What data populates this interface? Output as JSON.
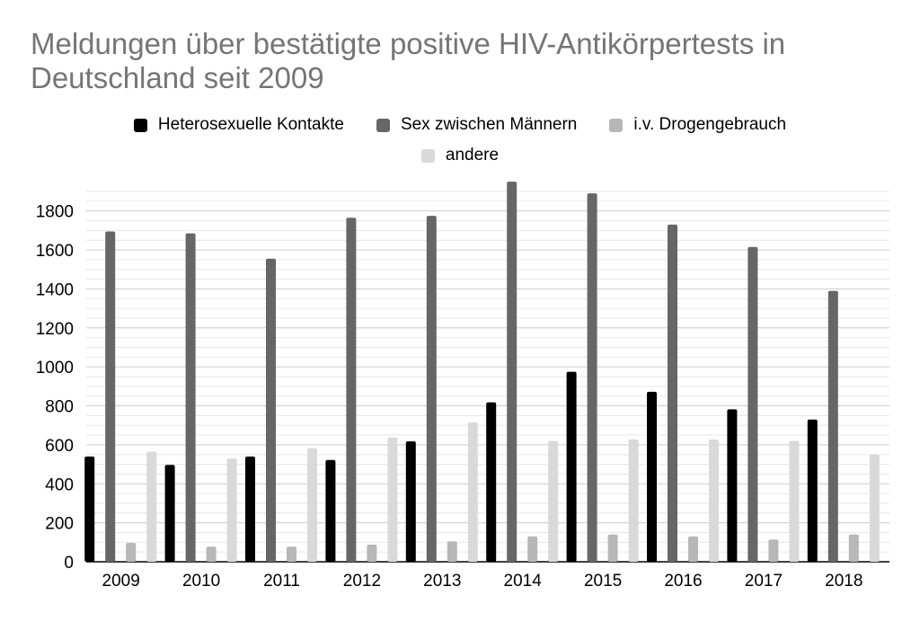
{
  "chart_data": {
    "type": "bar",
    "title": "Meldungen über bestätigte positive HIV-Antikörpertests in Deutschland seit 2009",
    "xlabel": "",
    "ylabel": "",
    "categories": [
      "2009",
      "2010",
      "2011",
      "2012",
      "2013",
      "2014",
      "2015",
      "2016",
      "2017",
      "2018"
    ],
    "ylim": [
      0,
      1900
    ],
    "yticks": [
      "0",
      "200",
      "400",
      "600",
      "800",
      "1000",
      "1200",
      "1400",
      "1600",
      "1800"
    ],
    "grid": true,
    "legend_position": "top",
    "series": [
      {
        "name": "Heterosexuelle Kontakte",
        "color": "#000000",
        "values": [
          540,
          497,
          540,
          522,
          618,
          818,
          975,
          872,
          782,
          730
        ]
      },
      {
        "name": "Sex zwischen Männern",
        "color": "#666666",
        "values": [
          1695,
          1685,
          1555,
          1765,
          1775,
          1950,
          1890,
          1730,
          1615,
          1390
        ]
      },
      {
        "name": "i.v. Drogengebrauch",
        "color": "#b7b7b7",
        "values": [
          97,
          78,
          78,
          88,
          105,
          130,
          140,
          130,
          114,
          140
        ]
      },
      {
        "name": "andere",
        "color": "#d9d9d9",
        "values": [
          565,
          530,
          583,
          638,
          715,
          620,
          628,
          628,
          620,
          550
        ]
      }
    ]
  }
}
